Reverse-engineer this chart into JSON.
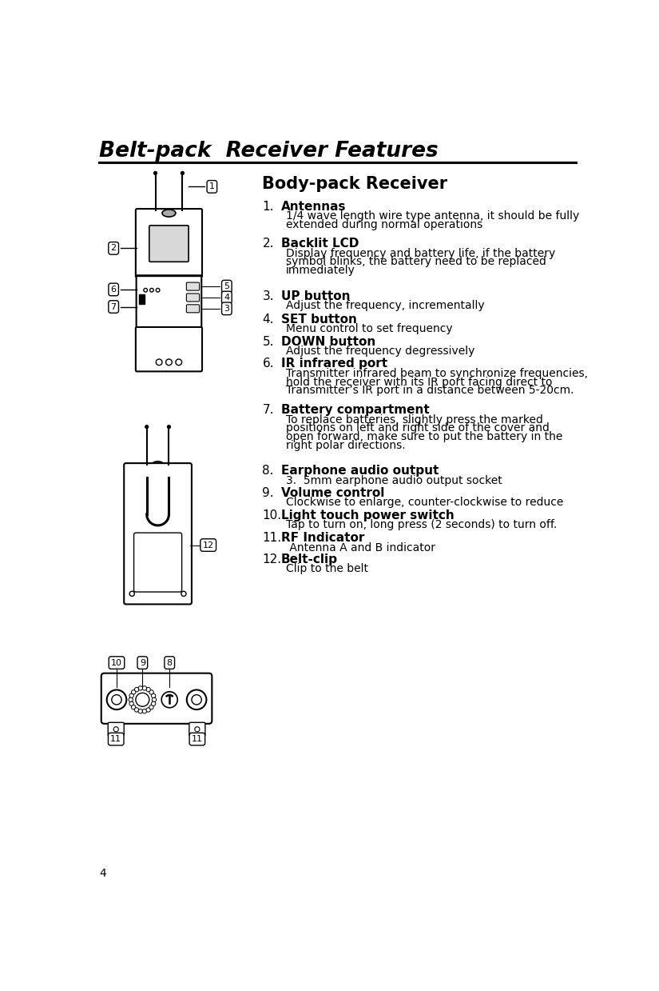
{
  "page_title": "Belt-pack  Receiver Features",
  "section_title": "Body-pack Receiver",
  "bg_color": "#ffffff",
  "text_color": "#000000",
  "items": [
    {
      "number": "1.",
      "title": "Antennas",
      "desc": [
        "1/4 wave length wire type antenna, it should be fully",
        "extended during normal operations"
      ]
    },
    {
      "number": "2.",
      "title": "Backlit LCD",
      "desc": [
        "Display frequency and battery life, if the battery",
        "symbol blinks, the battery need to be replaced",
        "immediately"
      ]
    },
    {
      "number": "3.",
      "title": "UP button",
      "desc": [
        "Adjust the frequency, incrementally"
      ]
    },
    {
      "number": "4.",
      "title": "SET button",
      "desc": [
        "Menu control to set frequency"
      ]
    },
    {
      "number": "5.",
      "title": "DOWN button",
      "desc": [
        "Adjust the frequency degressively"
      ]
    },
    {
      "number": "6.",
      "title": "IR infrared port",
      "desc": [
        "Transmitter infrared beam to synchronize frequencies,",
        "hold the receiver with its IR port facing direct to",
        "Transmitter’s IR port in a distance between 5-20cm."
      ]
    },
    {
      "number": "7.",
      "title": "Battery compartment",
      "desc": [
        "To replace batteries, slightly press the marked",
        "positions on left and right side of the cover and",
        "open forward, make sure to put the battery in the",
        "right polar directions."
      ]
    },
    {
      "number": "8.",
      "title": "Earphone audio output",
      "desc": [
        "3.  5mm earphone audio output socket"
      ]
    },
    {
      "number": "9.",
      "title": "Volume control",
      "desc": [
        "Clockwise to enlarge, counter-clockwise to reduce"
      ]
    },
    {
      "number": "10.",
      "title": "Light touch power switch",
      "desc": [
        "Tap to turn on, long press (2 seconds) to turn off."
      ]
    },
    {
      "number": "11.",
      "title": "RF Indicator",
      "desc": [
        " Antenna A and B indicator"
      ]
    },
    {
      "number": "12.",
      "title": "Belt-clip",
      "desc": [
        "Clip to the belt"
      ]
    }
  ],
  "page_number": "4"
}
